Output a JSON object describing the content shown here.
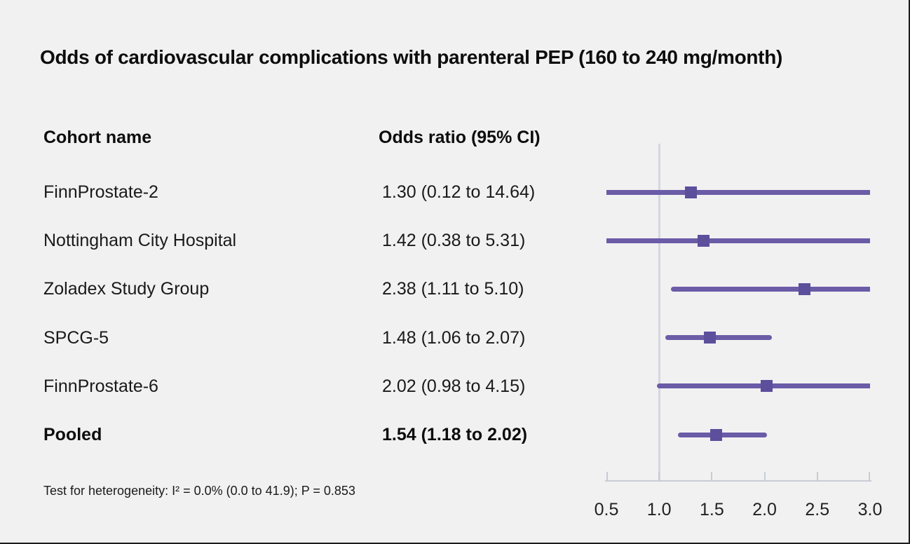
{
  "chart_data": {
    "type": "forest",
    "title": "Odds of cardiovascular complications with parenteral PEP (160 to 240 mg/month)",
    "columns": {
      "label_header": "Cohort name",
      "value_header": "Odds ratio (95% CI)"
    },
    "rows": [
      {
        "label": "FinnProstate-2",
        "value_text": "1.30 (0.12 to 14.64)",
        "or": 1.3,
        "lo": 0.12,
        "hi": 14.64,
        "bold": false
      },
      {
        "label": "Nottingham City Hospital",
        "value_text": "1.42 (0.38 to 5.31)",
        "or": 1.42,
        "lo": 0.38,
        "hi": 5.31,
        "bold": false
      },
      {
        "label": "Zoladex Study Group",
        "value_text": "2.38 (1.11 to 5.10)",
        "or": 2.38,
        "lo": 1.11,
        "hi": 5.1,
        "bold": false
      },
      {
        "label": "SPCG-5",
        "value_text": "1.48 (1.06 to 2.07)",
        "or": 1.48,
        "lo": 1.06,
        "hi": 2.07,
        "bold": false
      },
      {
        "label": "FinnProstate-6",
        "value_text": "2.02 (0.98 to 4.15)",
        "or": 2.02,
        "lo": 0.98,
        "hi": 4.15,
        "bold": false
      },
      {
        "label": "Pooled",
        "value_text": "1.54 (1.18 to 2.02)",
        "or": 1.54,
        "lo": 1.18,
        "hi": 2.02,
        "bold": true
      }
    ],
    "footnote": "Test for heterogeneity: I² = 0.0% (0.0 to 41.9); P = 0.853",
    "axis": {
      "range": [
        0.5,
        3.0
      ],
      "ticks": [
        0.5,
        1.0,
        1.5,
        2.0,
        2.5,
        3.0
      ],
      "reference_line": 1.0,
      "scale": "linear"
    },
    "legend": null,
    "grid": false,
    "colors": {
      "background": "#f2f1f2",
      "ci_line": "#6a5ca7",
      "marker": "#5c4f9c",
      "axis": "#c8ccd4",
      "reference_line": "#d5d7e0",
      "text": "#111111"
    }
  }
}
